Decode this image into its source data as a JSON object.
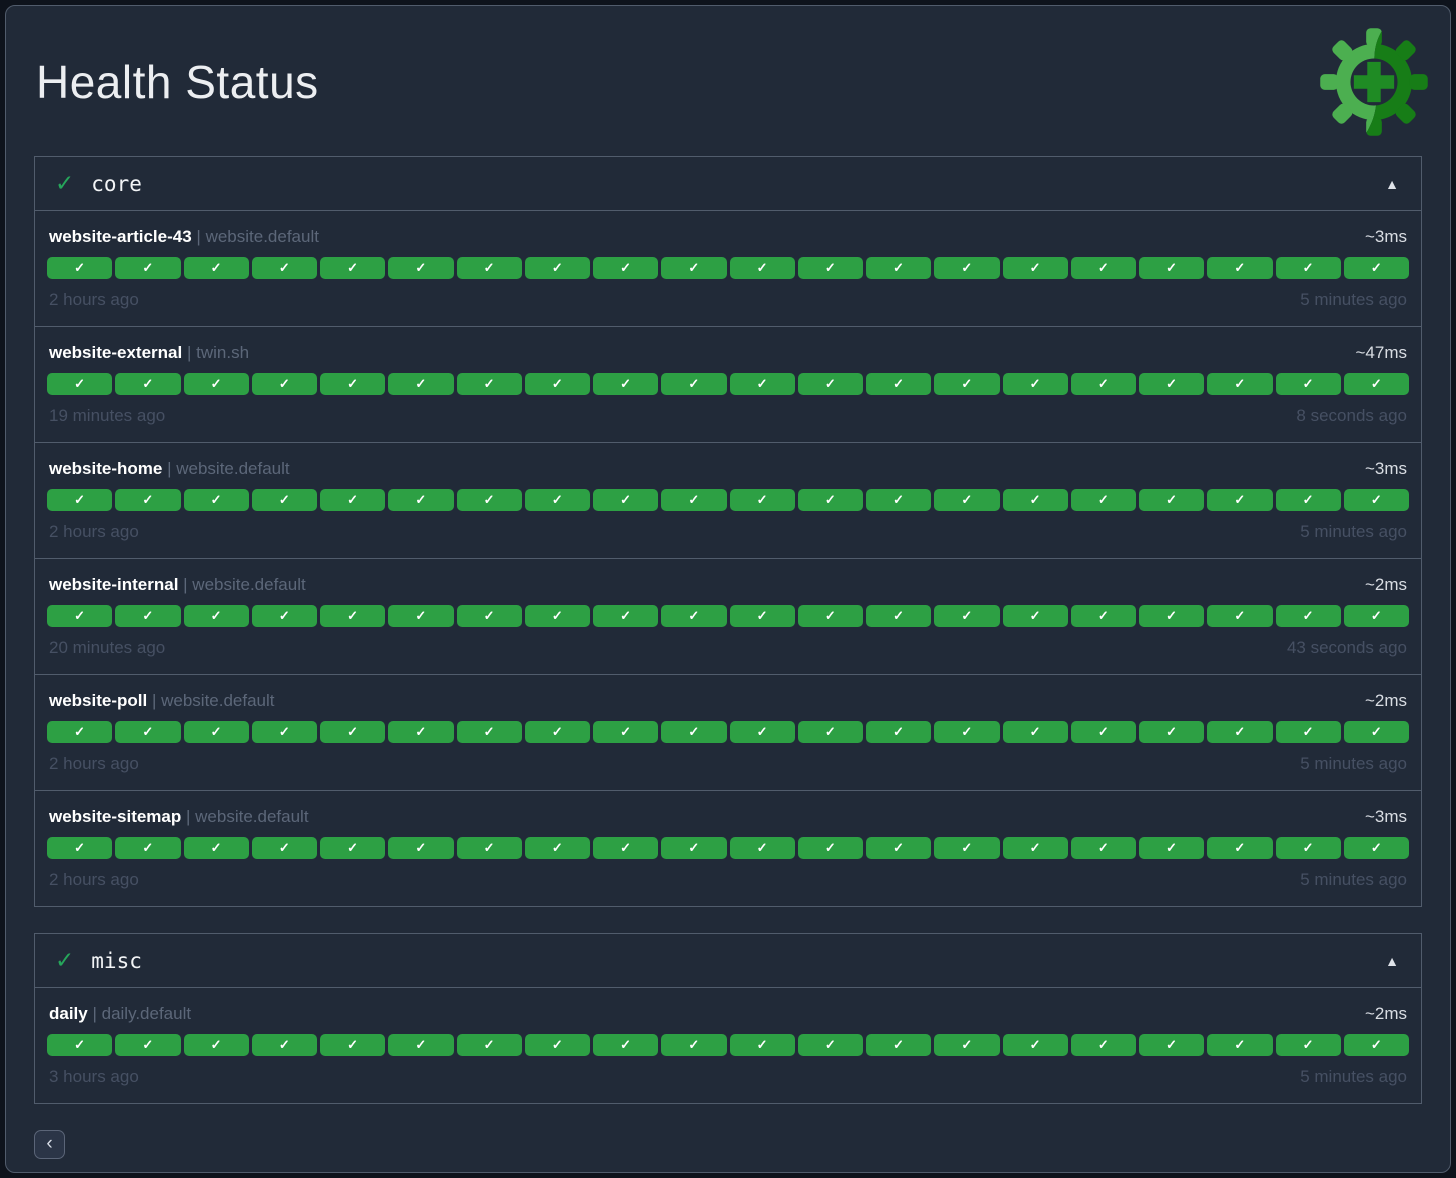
{
  "page": {
    "title": "Health Status",
    "separator": "|"
  },
  "icons": {
    "section_ok": "✓",
    "collapse": "▲",
    "pill_check": "✓",
    "back": "‹"
  },
  "colors": {
    "page_bg": "#212a38",
    "border": "#515c6c",
    "pill_green": "#2da044",
    "status_green": "#26a65b",
    "logo_light_green": "#4caf50",
    "logo_dark_green": "#177d17"
  },
  "sections": [
    {
      "name": "core",
      "status": "ok",
      "checks": [
        {
          "name": "website-article-43",
          "group": "website.default",
          "latency": "~3ms",
          "pills": 20,
          "pill_status": "pass",
          "first": "2 hours ago",
          "last": "5 minutes ago"
        },
        {
          "name": "website-external",
          "group": "twin.sh",
          "latency": "~47ms",
          "pills": 20,
          "pill_status": "pass",
          "first": "19 minutes ago",
          "last": "8 seconds ago"
        },
        {
          "name": "website-home",
          "group": "website.default",
          "latency": "~3ms",
          "pills": 20,
          "pill_status": "pass",
          "first": "2 hours ago",
          "last": "5 minutes ago"
        },
        {
          "name": "website-internal",
          "group": "website.default",
          "latency": "~2ms",
          "pills": 20,
          "pill_status": "pass",
          "first": "20 minutes ago",
          "last": "43 seconds ago"
        },
        {
          "name": "website-poll",
          "group": "website.default",
          "latency": "~2ms",
          "pills": 20,
          "pill_status": "pass",
          "first": "2 hours ago",
          "last": "5 minutes ago"
        },
        {
          "name": "website-sitemap",
          "group": "website.default",
          "latency": "~3ms",
          "pills": 20,
          "pill_status": "pass",
          "first": "2 hours ago",
          "last": "5 minutes ago"
        }
      ]
    },
    {
      "name": "misc",
      "status": "ok",
      "checks": [
        {
          "name": "daily",
          "group": "daily.default",
          "latency": "~2ms",
          "pills": 20,
          "pill_status": "pass",
          "first": "3 hours ago",
          "last": "5 minutes ago"
        }
      ]
    }
  ],
  "back_button": {
    "label": "‹"
  }
}
